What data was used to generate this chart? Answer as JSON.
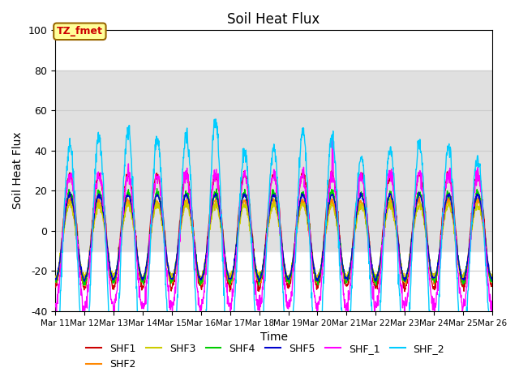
{
  "title": "Soil Heat Flux",
  "ylabel": "Soil Heat Flux",
  "xlabel": "Time",
  "ylim": [
    -40,
    100
  ],
  "annotation_text": "TZ_fmet",
  "annotation_bg": "#ffff99",
  "annotation_border": "#996600",
  "annotation_text_color": "#cc0000",
  "grid_color": "#cccccc",
  "series_colors": {
    "SHF1": "#cc0000",
    "SHF2": "#ff8800",
    "SHF3": "#cccc00",
    "SHF4": "#00cc00",
    "SHF5": "#0000cc",
    "SHF_1": "#ff00ff",
    "SHF_2": "#00ccff"
  },
  "xtick_labels": [
    "Mar 11",
    "Mar 12",
    "Mar 13",
    "Mar 14",
    "Mar 15",
    "Mar 16",
    "Mar 17",
    "Mar 18",
    "Mar 19",
    "Mar 20",
    "Mar 21",
    "Mar 22",
    "Mar 23",
    "Mar 24",
    "Mar 25",
    "Mar 26"
  ],
  "ytick_values": [
    -40,
    -20,
    0,
    20,
    40,
    60,
    80,
    100
  ],
  "days": 15,
  "points_per_day": 96
}
